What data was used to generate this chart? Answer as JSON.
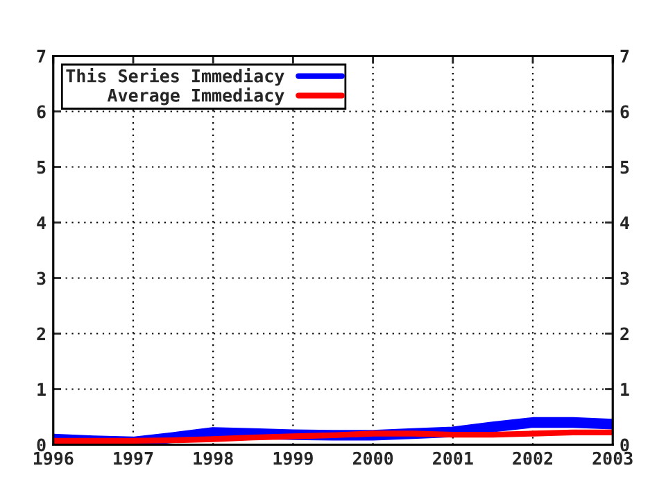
{
  "chart_data": {
    "type": "line",
    "x": [
      1996,
      1996.5,
      1997,
      1997.5,
      1998,
      1998.5,
      1999,
      1999.5,
      2000,
      2000.5,
      2001,
      2001.5,
      2002,
      2002.5,
      2003
    ],
    "series": [
      {
        "name": "This Series Immediacy",
        "color": "#0000ff",
        "values": [
          0.1,
          0.07,
          0.05,
          0.13,
          0.22,
          0.2,
          0.18,
          0.17,
          0.17,
          0.2,
          0.23,
          0.32,
          0.4,
          0.4,
          0.37
        ]
      },
      {
        "name": "Average Immediacy",
        "color": "#ff0000",
        "values": [
          0.07,
          0.07,
          0.07,
          0.08,
          0.1,
          0.13,
          0.15,
          0.17,
          0.2,
          0.2,
          0.18,
          0.18,
          0.2,
          0.22,
          0.22
        ]
      }
    ],
    "xlim": [
      1996,
      2003
    ],
    "xticks": [
      1996,
      1997,
      1998,
      1999,
      2000,
      2001,
      2002,
      2003
    ],
    "ylim": [
      0,
      7
    ],
    "yticks": [
      0,
      1,
      2,
      3,
      4,
      5,
      6,
      7
    ],
    "y2lim": [
      0,
      7
    ],
    "y2ticks": [
      0,
      1,
      2,
      3,
      4,
      5,
      6,
      7
    ],
    "grid": true,
    "legend": "top left",
    "marker": "none",
    "line_style": "solid"
  }
}
